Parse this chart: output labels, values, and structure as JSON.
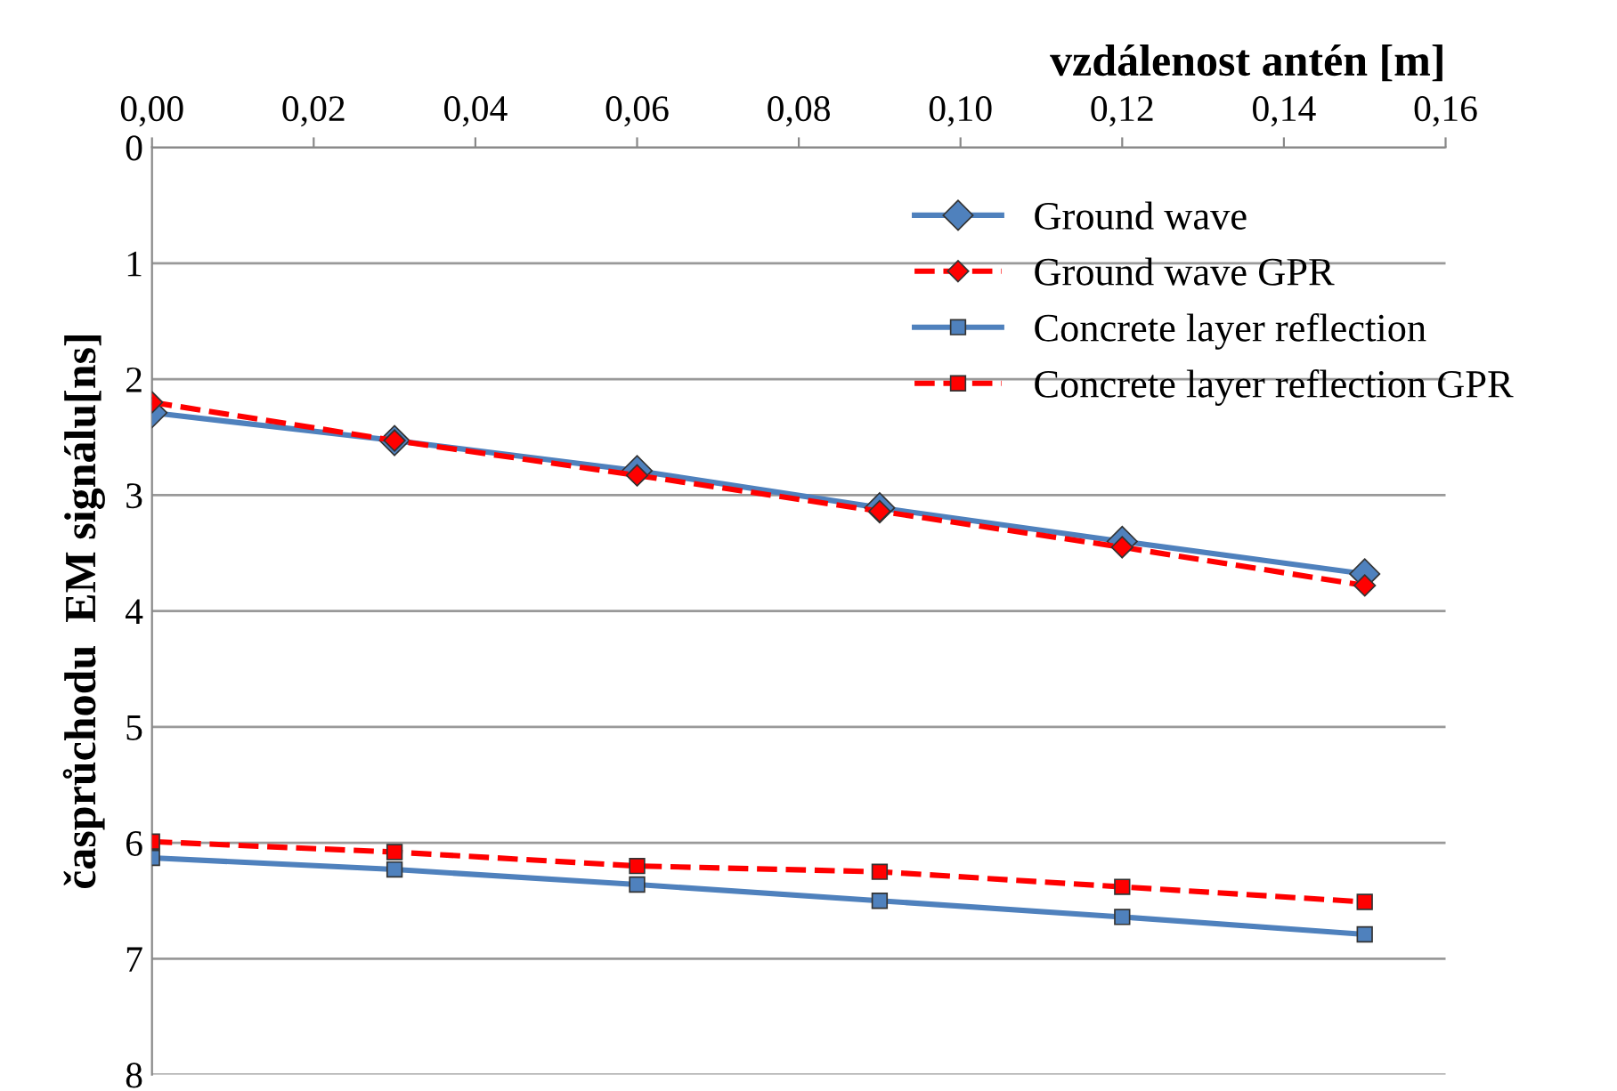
{
  "chart_data": {
    "type": "line",
    "xlabel": "vzdálenost antén [m]",
    "ylabel": "časprůchodu  EM signálu[ns]",
    "x": [
      0,
      0.03,
      0.06,
      0.09,
      0.12,
      0.15
    ],
    "series": [
      {
        "name": "Ground wave",
        "color": "#4f81bd",
        "marker": "diamond",
        "line_style": "solid",
        "values": [
          2.29,
          2.53,
          2.79,
          3.11,
          3.4,
          3.68
        ]
      },
      {
        "name": "Ground wave GPR",
        "color": "#ff0000",
        "marker": "diamond",
        "line_style": "dashed",
        "values": [
          2.2,
          2.53,
          2.83,
          3.14,
          3.45,
          3.78
        ]
      },
      {
        "name": "Concrete layer reflection",
        "color": "#4f81bd",
        "marker": "square",
        "line_style": "solid",
        "values": [
          6.13,
          6.23,
          6.36,
          6.5,
          6.64,
          6.79
        ]
      },
      {
        "name": "Concrete layer reflection GPR",
        "color": "#ff0000",
        "marker": "square",
        "line_style": "dashed",
        "values": [
          5.99,
          6.08,
          6.2,
          6.25,
          6.38,
          6.51
        ]
      }
    ],
    "xlim": [
      0,
      0.16
    ],
    "xticks": [
      {
        "value": 0,
        "label": "0,00"
      },
      {
        "value": 0.02,
        "label": "0,02"
      },
      {
        "value": 0.04,
        "label": "0,04"
      },
      {
        "value": 0.06,
        "label": "0,06"
      },
      {
        "value": 0.08,
        "label": "0,08"
      },
      {
        "value": 0.1,
        "label": "0,10"
      },
      {
        "value": 0.12,
        "label": "0,12"
      },
      {
        "value": 0.14,
        "label": "0,14"
      },
      {
        "value": 0.16,
        "label": "0,16"
      }
    ],
    "ylim": [
      8,
      0
    ],
    "yticks": [
      0,
      1,
      2,
      3,
      4,
      5,
      6,
      7,
      8
    ],
    "grid": "y",
    "legend": "top right"
  }
}
